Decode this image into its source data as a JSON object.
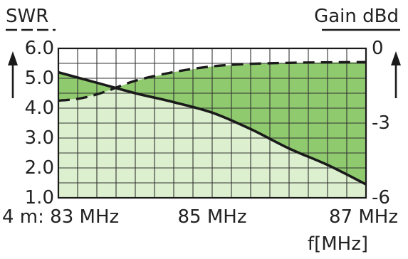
{
  "chart_data": {
    "type": "line",
    "left_axis_title": "SWR",
    "right_axis_title": "Gain dBd",
    "xlabel": "f[MHz]",
    "xlim": [
      83,
      87
    ],
    "ylim_left": [
      1.0,
      6.0
    ],
    "ylim_right": [
      -6,
      0
    ],
    "x_tick_labels": [
      {
        "value": 83,
        "label": "4 m: 83 MHz"
      },
      {
        "value": 85,
        "label": "85 MHz"
      },
      {
        "value": 87,
        "label": "87 MHz"
      }
    ],
    "y_left_ticks": [
      "6.0",
      "5.0",
      "4.0",
      "3.0",
      "2.0",
      "1.0"
    ],
    "y_right_ticks": [
      "0",
      "-3",
      "-6"
    ],
    "grid": true,
    "series": [
      {
        "axis": "left",
        "style": "solid",
        "x": [
          83.0,
          83.5,
          84.0,
          84.5,
          85.0,
          85.5,
          86.0,
          86.5,
          87.0
        ],
        "y": [
          5.2,
          4.85,
          4.5,
          4.2,
          3.85,
          3.3,
          2.65,
          2.1,
          1.45
        ]
      },
      {
        "axis": "right",
        "style": "dashed",
        "x": [
          83.0,
          83.3,
          83.6,
          84.0,
          84.5,
          85.0,
          85.5,
          86.0,
          86.5,
          87.0
        ],
        "y": [
          -2.1,
          -2.0,
          -1.75,
          -1.3,
          -0.95,
          -0.72,
          -0.62,
          -0.58,
          -0.56,
          -0.55
        ]
      }
    ],
    "colors": {
      "light_fill": "#dcefcf",
      "dark_fill": "#8fca6e",
      "grid": "#333333",
      "curve": "#1a1a1a"
    }
  }
}
